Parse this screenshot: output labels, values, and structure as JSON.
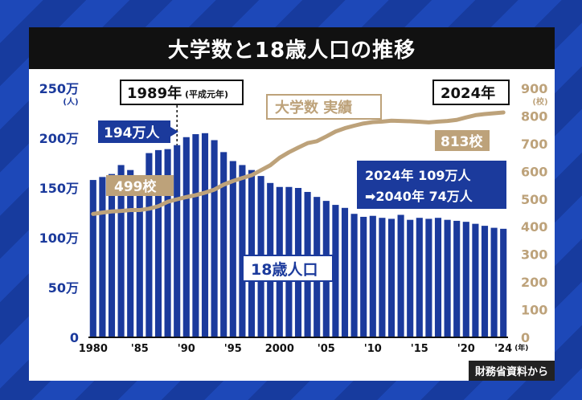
{
  "title": "大学数と18歳人口の推移",
  "source": "財務省資料から",
  "colors": {
    "population": "#1b3a9c",
    "universities": "#bda27a",
    "background": "#1a3fa8",
    "title_bg": "#111111"
  },
  "callouts": {
    "year_1989": "1989年",
    "year_1989_sub": "(平成元年)",
    "year_2024": "2024年",
    "peak_pop": "194万人",
    "univ_start": "499校",
    "univ_end": "813校",
    "univ_series_label": "大学数 実績",
    "pop_series_label": "18歳人口",
    "forecast_line1": "2024年 109万人",
    "forecast_line2": "➡2040年 74万人"
  },
  "chart_data": {
    "type": "bar",
    "x": [
      1980,
      1981,
      1982,
      1983,
      1984,
      1985,
      1986,
      1987,
      1988,
      1989,
      1990,
      1991,
      1992,
      1993,
      1994,
      1995,
      1996,
      1997,
      1998,
      1999,
      2000,
      2001,
      2002,
      2003,
      2004,
      2005,
      2006,
      2007,
      2008,
      2009,
      2010,
      2011,
      2012,
      2013,
      2014,
      2015,
      2016,
      2017,
      2018,
      2019,
      2020,
      2021,
      2022,
      2023,
      2024
    ],
    "xticks": [
      "1980",
      "'85",
      "'90",
      "'95",
      "2000",
      "'05",
      "'10",
      "'15",
      "'20",
      "'24"
    ],
    "xticks_suffix": "(年)",
    "series": [
      {
        "name": "18歳人口",
        "type": "bar",
        "axis": "left",
        "values": [
          158,
          161,
          164,
          173,
          168,
          156,
          185,
          188,
          189,
          193,
          201,
          204,
          205,
          198,
          186,
          177,
          173,
          168,
          162,
          155,
          151,
          151,
          150,
          146,
          141,
          137,
          133,
          130,
          124,
          121,
          122,
          120,
          119,
          123,
          118,
          120,
          119,
          120,
          118,
          117,
          116,
          114,
          112,
          110,
          109
        ]
      },
      {
        "name": "大学数 実績",
        "type": "line",
        "axis": "right",
        "values": [
          446,
          451,
          455,
          457,
          460,
          460,
          465,
          474,
          490,
          499,
          507,
          514,
          523,
          534,
          552,
          565,
          576,
          586,
          604,
          622,
          649,
          669,
          686,
          702,
          709,
          726,
          744,
          756,
          765,
          773,
          778,
          780,
          783,
          782,
          781,
          779,
          777,
          780,
          782,
          786,
          795,
          803,
          807,
          810,
          813
        ]
      }
    ],
    "y_left": {
      "label": "(人)",
      "ylim": [
        0,
        250
      ],
      "ticks": [
        "0",
        "50万",
        "100万",
        "150万",
        "200万",
        "250万"
      ]
    },
    "y_right": {
      "label": "(校)",
      "ylim": [
        0,
        900
      ],
      "ticks": [
        "0",
        "100",
        "200",
        "300",
        "400",
        "500",
        "600",
        "700",
        "800",
        "900"
      ]
    }
  }
}
